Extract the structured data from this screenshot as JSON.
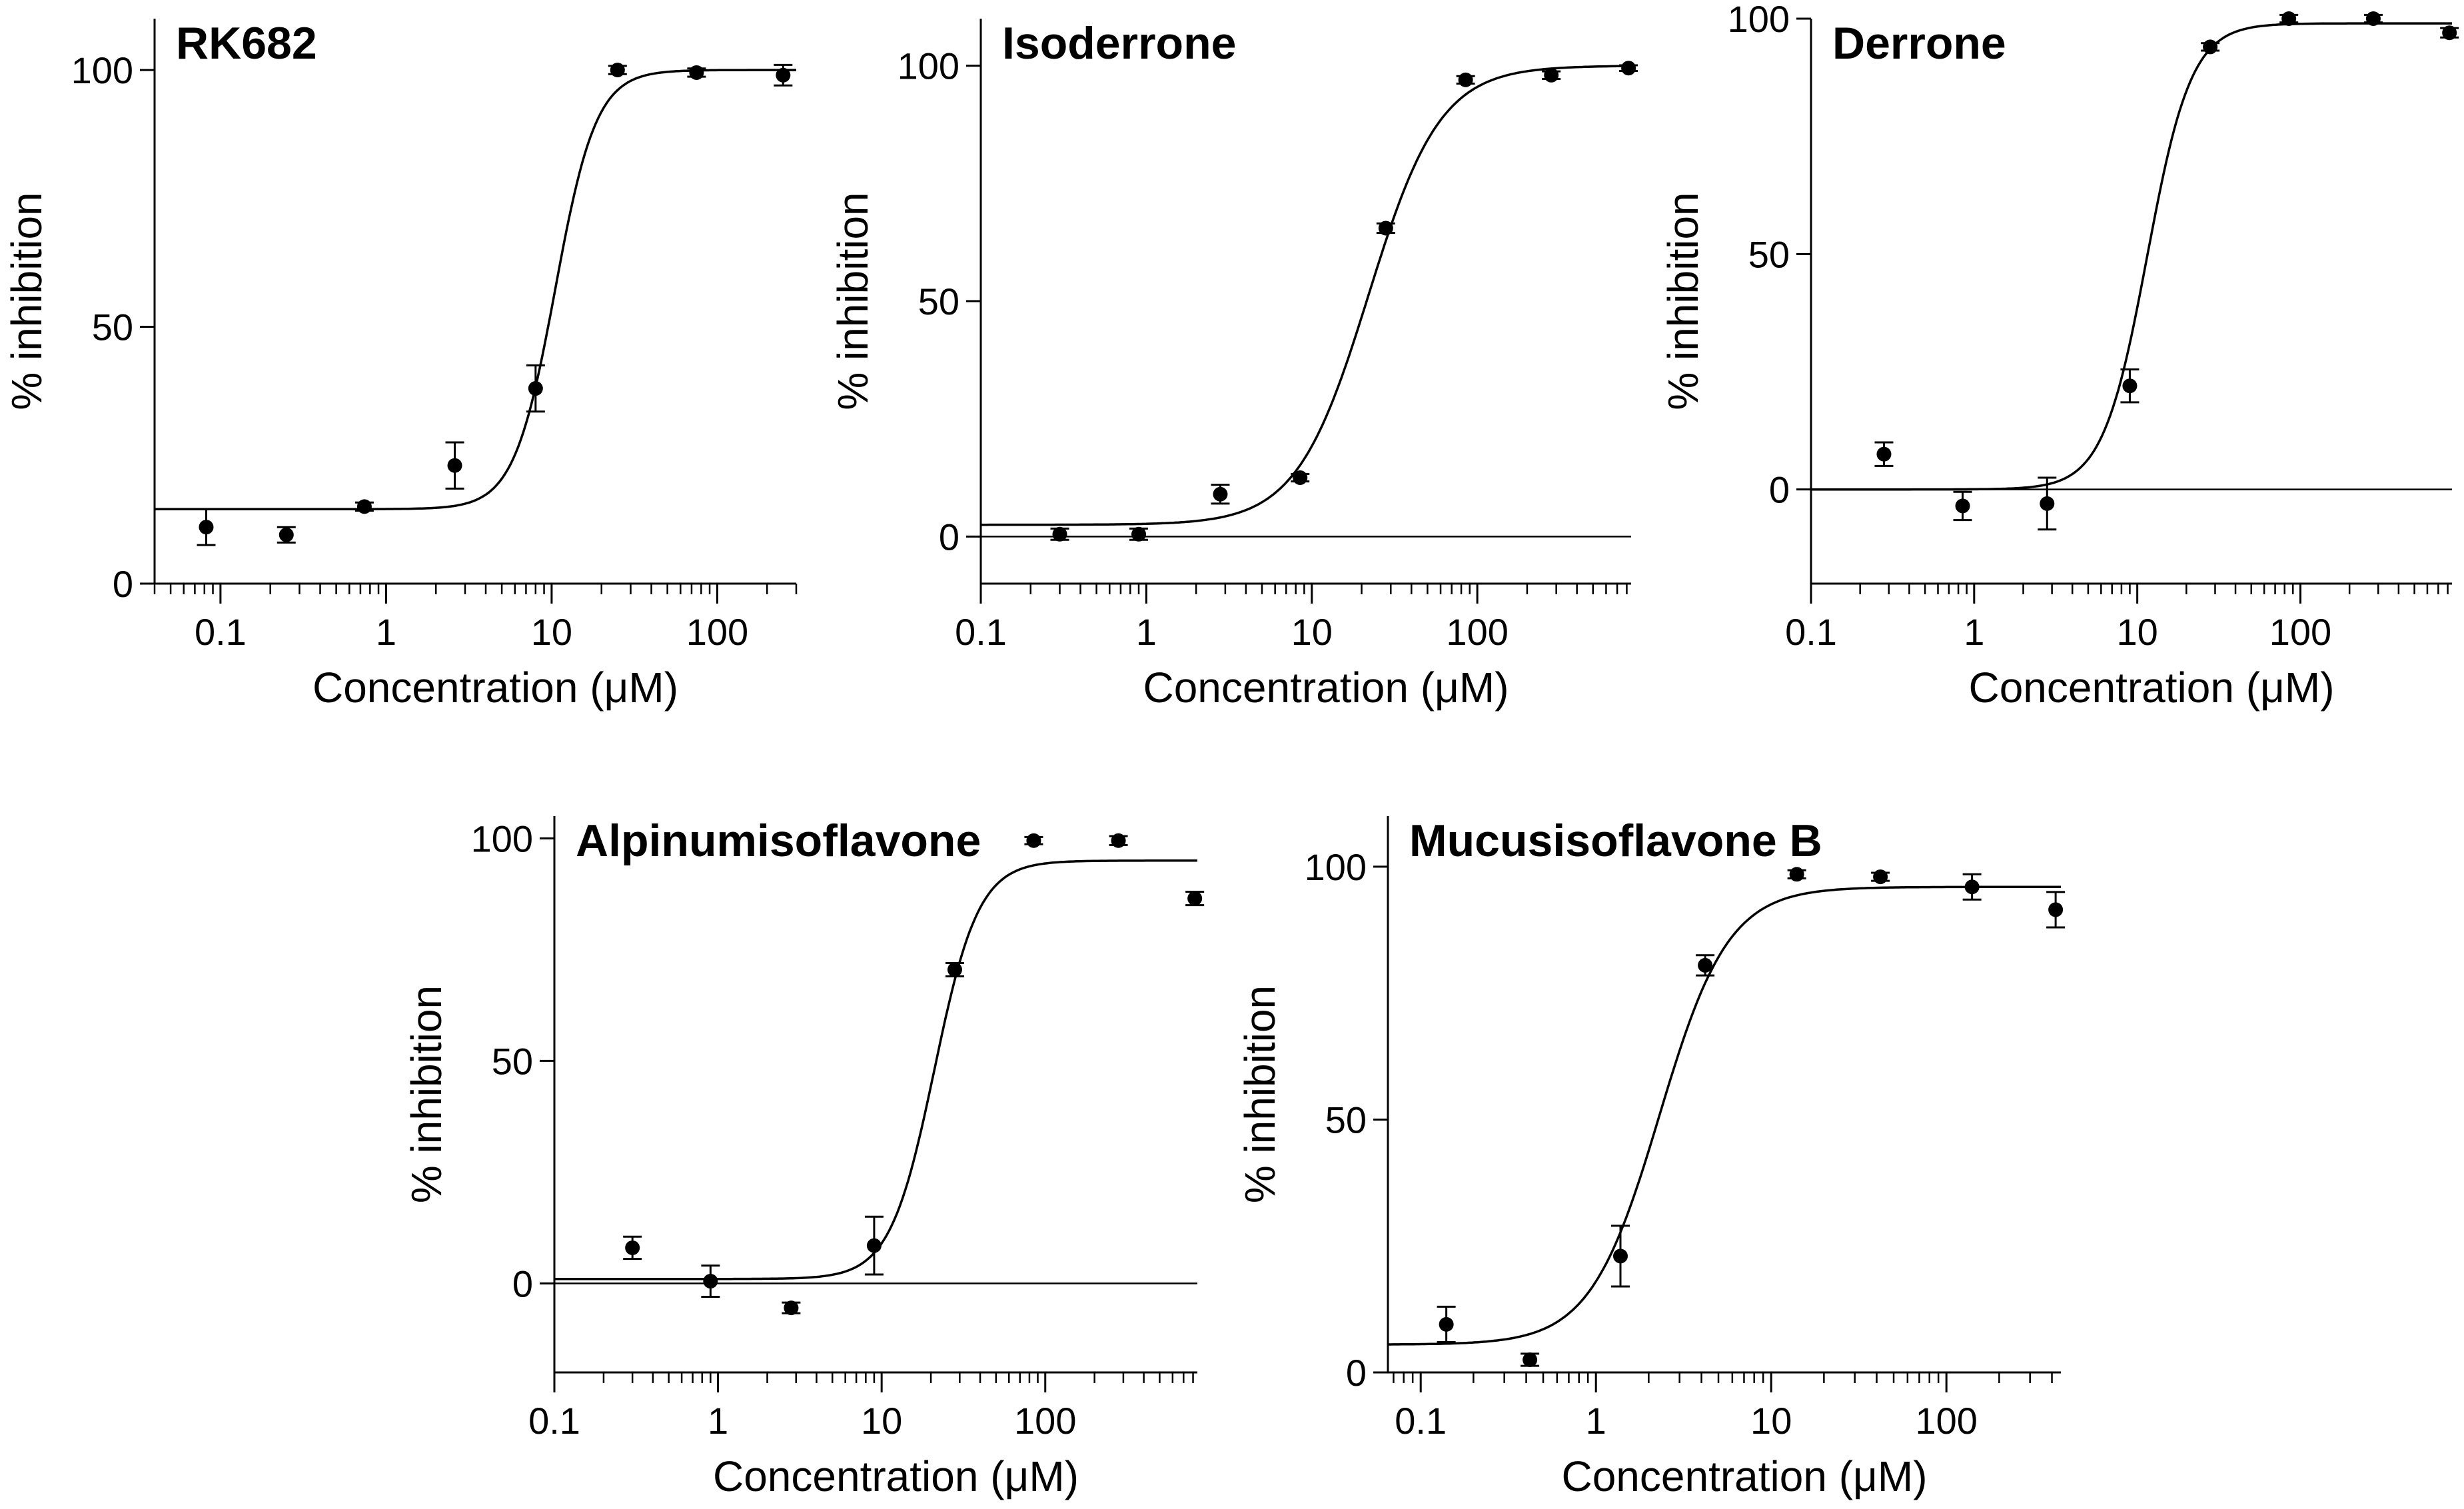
{
  "chart_data": [
    {
      "type": "scatter",
      "title": "RK682",
      "xlabel": "Concentration (μM)",
      "ylabel": "% inhibition",
      "xscale": "log",
      "xlim": [
        0.04,
        300
      ],
      "ylim": [
        0,
        110
      ],
      "xticks": [
        0.1,
        1,
        10,
        100
      ],
      "xtick_labels": [
        "0.1",
        "1",
        "10",
        "100"
      ],
      "yticks": [
        0,
        50,
        100
      ],
      "ytick_labels": [
        "0",
        "50",
        "100"
      ],
      "zero_line": false,
      "x": [
        0.082,
        0.25,
        0.74,
        2.6,
        8.0,
        25,
        75,
        250
      ],
      "y": [
        11,
        9.5,
        15,
        23,
        38,
        100,
        99.5,
        99
      ],
      "err": [
        3.5,
        1.5,
        0.8,
        4.5,
        4.5,
        0.8,
        0.8,
        2
      ],
      "fit": {
        "bottom": 14.5,
        "top": 100,
        "ic50": 10.5,
        "hill": 3.5
      }
    },
    {
      "type": "scatter",
      "title": "Isoderrone",
      "xlabel": "Concentration (μM)",
      "ylabel": "% inhibition",
      "xscale": "log",
      "xlim": [
        0.1,
        850
      ],
      "ylim": [
        -10,
        110
      ],
      "xticks": [
        0.1,
        1,
        10,
        100
      ],
      "xtick_labels": [
        "0.1",
        "1",
        "10",
        "100"
      ],
      "yticks": [
        0,
        50,
        100
      ],
      "ytick_labels": [
        "0",
        "50",
        "100"
      ],
      "zero_line": true,
      "x": [
        0.3,
        0.9,
        2.8,
        8.5,
        28,
        85,
        280,
        820
      ],
      "y": [
        0.5,
        0.5,
        9,
        12.5,
        65.5,
        97,
        98,
        99.5
      ],
      "err": [
        1.2,
        1.2,
        2,
        0.8,
        1,
        0.8,
        0.8,
        0.6
      ],
      "fit": {
        "bottom": 2.5,
        "top": 100,
        "ic50": 22,
        "hill": 2.0
      }
    },
    {
      "type": "scatter",
      "title": "Derrone",
      "xlabel": "Concentration (μM)",
      "ylabel": "% inhibition",
      "xscale": "log",
      "xlim": [
        0.1,
        850
      ],
      "ylim": [
        -20,
        100
      ],
      "xticks": [
        0.1,
        1,
        10,
        100
      ],
      "xtick_labels": [
        "0.1",
        "1",
        "10",
        "100"
      ],
      "yticks": [
        0,
        50,
        100
      ],
      "ytick_labels": [
        "0",
        "50",
        "100"
      ],
      "zero_line": true,
      "x": [
        0.28,
        0.85,
        2.8,
        9.0,
        28,
        85,
        280,
        820
      ],
      "y": [
        7.5,
        -3.5,
        -3,
        22,
        94,
        100,
        100,
        97
      ],
      "err": [
        2.5,
        3,
        5.5,
        3.5,
        0.8,
        0.8,
        0.8,
        1
      ],
      "fit": {
        "bottom": 0,
        "top": 99,
        "ic50": 11.5,
        "hill": 3.2
      }
    },
    {
      "type": "scatter",
      "title": "Alpinumisoflavone",
      "xlabel": "Concentration (μM)",
      "ylabel": "% inhibition",
      "xscale": "log",
      "xlim": [
        0.1,
        850
      ],
      "ylim": [
        -20,
        105
      ],
      "xticks": [
        0.1,
        1,
        10,
        100
      ],
      "xtick_labels": [
        "0.1",
        "1",
        "10",
        "100"
      ],
      "yticks": [
        0,
        50,
        100
      ],
      "ytick_labels": [
        "0",
        "50",
        "100"
      ],
      "zero_line": true,
      "x": [
        0.3,
        0.9,
        2.8,
        9.0,
        28,
        85,
        280,
        820
      ],
      "y": [
        8,
        0.5,
        -5.5,
        8.5,
        70.5,
        99.5,
        99.5,
        86.5
      ],
      "err": [
        2.5,
        3.5,
        1.2,
        6.5,
        1.5,
        0.8,
        1,
        1.5
      ],
      "fit": {
        "bottom": 1,
        "top": 95,
        "ic50": 21,
        "hill": 3.2
      }
    },
    {
      "type": "scatter",
      "title": "Mucusisoflavone B",
      "xlabel": "Concentration (μM)",
      "ylabel": "% inhibition",
      "xscale": "log",
      "xlim": [
        0.065,
        450
      ],
      "ylim": [
        0,
        110
      ],
      "xticks": [
        0.1,
        1,
        10,
        100
      ],
      "xtick_labels": [
        "0.1",
        "1",
        "10",
        "100"
      ],
      "yticks": [
        0,
        50,
        100
      ],
      "ytick_labels": [
        "0",
        "50",
        "100"
      ],
      "zero_line": false,
      "x": [
        0.14,
        0.42,
        1.38,
        4.2,
        14,
        42,
        140,
        420
      ],
      "y": [
        9.5,
        2.5,
        23,
        80.5,
        98.5,
        98,
        96,
        91.5
      ],
      "err": [
        3.5,
        1.2,
        6,
        2,
        0.8,
        0.8,
        2.5,
        3.5
      ],
      "fit": {
        "bottom": 5.5,
        "top": 96,
        "ic50": 2.3,
        "hill": 2.2
      }
    }
  ]
}
